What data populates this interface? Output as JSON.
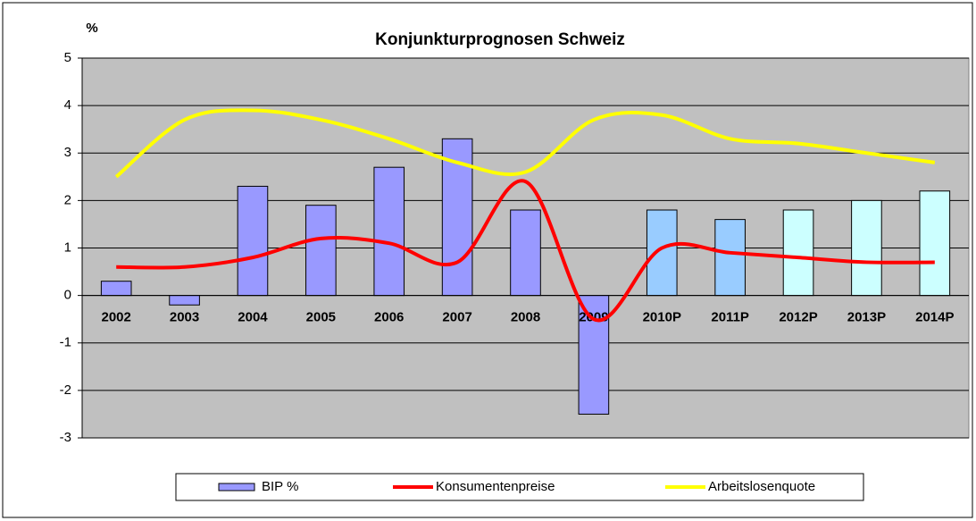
{
  "chart_data": {
    "type": "combo",
    "title": "Konjunkturprognosen  Schweiz",
    "y_label": "%",
    "categories": [
      "2002",
      "2003",
      "2004",
      "2005",
      "2006",
      "2007",
      "2008",
      "2009",
      "2010P",
      "2011P",
      "2012P",
      "2013P",
      "2014P"
    ],
    "ylim": [
      -3,
      5
    ],
    "yticks": [
      -3,
      -2,
      -1,
      0,
      1,
      2,
      3,
      4,
      5
    ],
    "grid": true,
    "background": "#c0c0c0",
    "legend": "bottom",
    "series": [
      {
        "name": "BIP %",
        "type": "bar",
        "color": "#9999ff",
        "colors": [
          "#9999ff",
          "#9999ff",
          "#9999ff",
          "#9999ff",
          "#9999ff",
          "#9999ff",
          "#9999ff",
          "#9999ff",
          "#99ccff",
          "#99ccff",
          "#ccffff",
          "#ccffff",
          "#ccffff"
        ],
        "values": [
          0.3,
          -0.2,
          2.3,
          1.9,
          2.7,
          3.3,
          1.8,
          -2.5,
          1.8,
          1.6,
          1.8,
          2.0,
          2.2
        ]
      },
      {
        "name": "Konsumentenpreise",
        "type": "line",
        "color": "#ff0000",
        "values": [
          0.6,
          0.6,
          0.8,
          1.2,
          1.1,
          0.7,
          2.4,
          -0.5,
          1.0,
          0.9,
          0.8,
          0.7,
          0.7
        ]
      },
      {
        "name": "Arbeitslosenquote",
        "type": "line",
        "color": "#ffff00",
        "values": [
          2.5,
          3.7,
          3.9,
          3.7,
          3.3,
          2.8,
          2.6,
          3.7,
          3.8,
          3.3,
          3.2,
          3.0,
          2.8
        ]
      }
    ]
  }
}
